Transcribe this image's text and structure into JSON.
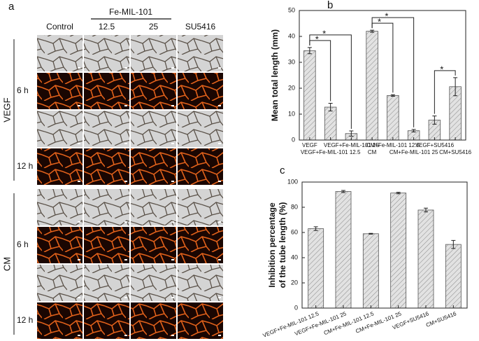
{
  "panel_a": {
    "label": "a",
    "columns": [
      "Control",
      "12.5",
      "25",
      "SU5416"
    ],
    "group_header": "Fe-MIL-101",
    "groups": [
      {
        "name": "VEGF",
        "times": [
          "6 h",
          "12 h"
        ]
      },
      {
        "name": "CM",
        "times": [
          "6 h",
          "12 h"
        ]
      }
    ]
  },
  "chart_data": [
    {
      "type": "bar",
      "label": "b",
      "ylabel": "Mean total length (mm)",
      "color": "#d9d9d9",
      "categories": [
        "VEGF",
        "VEGF+Fe-MIL-101 12.5",
        "VEGF+Fe-MIL-101 25",
        "CM",
        "CM+Fe-MIL-101 12.5",
        "CM+Fe-MIL-101 25",
        "VEGF+SU5416",
        "CM+SU5416"
      ],
      "values": [
        34.5,
        12.7,
        2.5,
        42,
        17.2,
        3.6,
        7.7,
        20.6
      ],
      "errors": [
        1.2,
        1.5,
        1,
        0.4,
        0.3,
        0.5,
        1.6,
        3.5
      ],
      "ylim": [
        0,
        50
      ],
      "yticks": [
        0,
        10,
        20,
        30,
        40,
        50
      ],
      "significance": [
        {
          "from": 0,
          "to": 1,
          "label": "*"
        },
        {
          "from": 0,
          "to": 2,
          "label": "*"
        },
        {
          "from": 3,
          "to": 4,
          "label": "*"
        },
        {
          "from": 3,
          "to": 5,
          "label": "*"
        },
        {
          "from": 6,
          "to": 7,
          "label": "*"
        }
      ]
    },
    {
      "type": "bar",
      "label": "c",
      "ylabel": [
        "Inhibition percentage",
        "of the tube length (%)"
      ],
      "color": "#d9d9d9",
      "categories": [
        "VEGF+Fe-MIL-101 12.5",
        "VEGF+Fe-MIL-101 25",
        "CM+Fe-MIL-101 12.5",
        "CM+Fe-MIL-101 25",
        "VEGF+SU5416",
        "CM+SU5416"
      ],
      "values": [
        63,
        92.5,
        59,
        91.3,
        77.8,
        50.5
      ],
      "errors": [
        1.5,
        0.8,
        0.3,
        0.6,
        1.5,
        3.2
      ],
      "ylim": [
        0,
        100
      ],
      "yticks": [
        0,
        20,
        40,
        60,
        80,
        100
      ]
    }
  ]
}
